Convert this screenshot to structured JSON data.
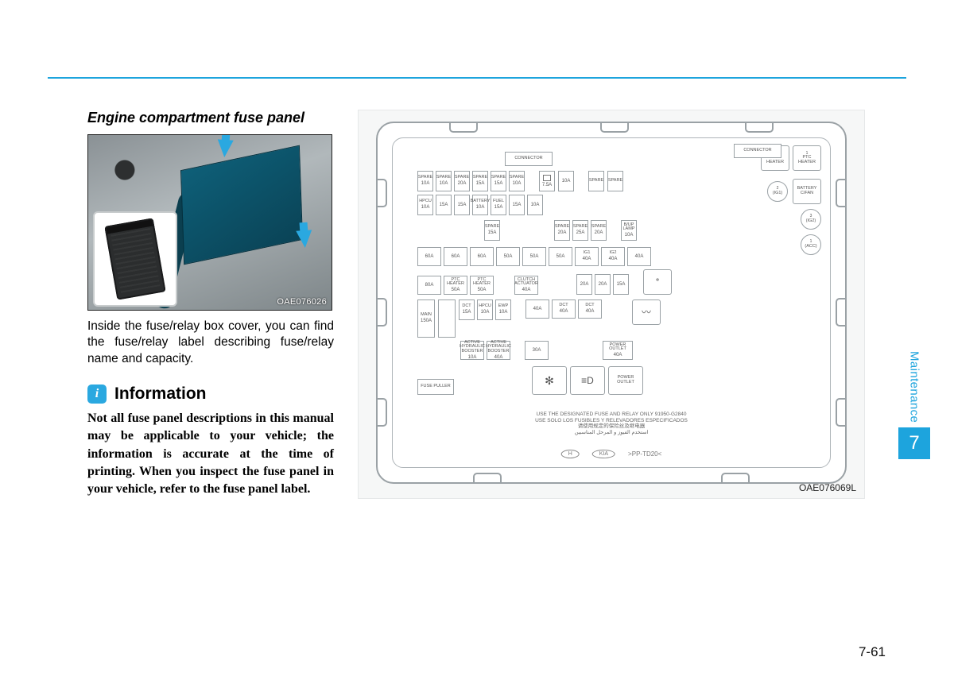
{
  "colors": {
    "rule": "#1da4dd",
    "accent": "#1da4dd",
    "side_text": "#1da4dd",
    "side_box": "#1da4dd",
    "text": "#111111",
    "muted": "#555555",
    "diagram_bg": "#f6f7f7",
    "line": "#9aa1a5"
  },
  "section": {
    "title": "Engine compartment fuse panel"
  },
  "photo": {
    "code": "OAE076026"
  },
  "body": {
    "p1": "Inside the fuse/relay box cover, you can find the fuse/relay label describing fuse/relay name and capacity."
  },
  "info": {
    "badge": "i",
    "title": "Information",
    "body": "Not all fuse panel descriptions in this manual may be applicable to your vehicle; the information is accurate at the time of printing. When you inspect the fuse panel in your vehicle, refer to the fuse panel label."
  },
  "diagram": {
    "code": "OAE076069L",
    "corner_relays": [
      {
        "label": "PTC HEATER",
        "sup": "3"
      },
      {
        "label": "PTC HEATER",
        "sup": "1"
      }
    ],
    "right_round_relays": [
      {
        "label": "(IG1)",
        "sup": "2"
      },
      {
        "label": "(IG2)",
        "sup": "3"
      },
      {
        "label": "(ACC)",
        "sup": "1"
      }
    ],
    "battery_cfan": "BATTERY C/FAN",
    "row_a_top": [
      {
        "name": "SPARE"
      },
      {
        "name": "SPARE"
      },
      {
        "name": "SPARE"
      },
      {
        "name": "SPARE"
      },
      {
        "name": "SPARE"
      },
      {
        "name": "SPARE"
      }
    ],
    "row_a_amp": [
      "10A",
      "10A",
      "20A",
      "15A",
      "15A",
      "10A"
    ],
    "row_a_right": {
      "icon": "washer",
      "amp1": "7.5A",
      "amp2": "10A"
    },
    "row_a_spares": [
      "SPARE",
      "SPARE"
    ],
    "connector": "CONNECTOR",
    "row_b_top": [
      {
        "name": "HPCU"
      },
      {
        "name": ""
      },
      {
        "name": ""
      },
      {
        "name": "BATTERY"
      },
      {
        "name": "FUEL"
      },
      {
        "name": ""
      }
    ],
    "row_b_amp": [
      "10A",
      "15A",
      "15A",
      "10A",
      "15A",
      "15A",
      "10A"
    ],
    "row_c": {
      "left": {
        "name": "SPARE",
        "amp": "15A"
      },
      "mid": [
        {
          "name": "SPARE",
          "amp": "20A"
        },
        {
          "name": "SPARE",
          "amp": "25A"
        },
        {
          "name": "SPARE",
          "amp": "20A"
        }
      ],
      "right": {
        "name": "B/UP LAMP",
        "amp": "10A"
      }
    },
    "row_d_labels": [
      "1",
      "2",
      "3",
      "1",
      "2",
      "1"
    ],
    "row_d_heads": [
      "",
      "",
      "",
      "",
      "",
      "",
      "IG1",
      "IG2"
    ],
    "row_d_amp": [
      "60A",
      "60A",
      "60A",
      "50A",
      "50A",
      "50A",
      "40A",
      "40A",
      "40A"
    ],
    "row_e_left": [
      {
        "name": "",
        "amp": "80A"
      },
      {
        "name": "PTC HEATER",
        "amp": "50A",
        "sup": "1"
      },
      {
        "name": "PTC HEATER",
        "amp": "50A",
        "sup": "2"
      }
    ],
    "row_e_mid": {
      "name": "CLUTCH ACTUATOR",
      "amp": "40A"
    },
    "row_e_right": [
      {
        "name": "",
        "amp": "20A"
      },
      {
        "name": "",
        "amp": "20A"
      },
      {
        "name": "",
        "amp": "15A"
      }
    ],
    "row_e_relay": {
      "icon": "snow"
    },
    "row_f_left_tall": [
      {
        "name": "MAIN",
        "amp": "150A"
      },
      {
        "name": "",
        "amp": ""
      }
    ],
    "row_f_mid_top": [
      {
        "name": "DCT",
        "amp": "15A"
      },
      {
        "name": "HPCU",
        "amp": "10A",
        "sup": "2"
      },
      {
        "name": "EWP",
        "amp": "10A"
      }
    ],
    "row_f_mid_main": [
      {
        "name": "",
        "amp": "40A",
        "sup": "1"
      },
      {
        "name": "DCT",
        "amp": "40A",
        "sup": "2"
      },
      {
        "name": "DCT",
        "amp": "40A",
        "sup": "1"
      }
    ],
    "row_f_relay": {
      "icon": "defrost"
    },
    "row_g_left": [
      {
        "name": "ACTIVE HYDRAULIC BOOSTER",
        "amp": "10A",
        "sup": "1"
      },
      {
        "name": "ACTIVE HYDRAULIC BOOSTER",
        "amp": "40A",
        "sup": "2"
      }
    ],
    "row_g_mid": {
      "name": "",
      "amp": "30A"
    },
    "row_g_right": {
      "name": "POWER OUTLET",
      "amp": "40A"
    },
    "row_h": {
      "puller": "FUSE PULLER",
      "relays": [
        {
          "icon": "fan"
        },
        {
          "icon": "headlamp"
        },
        {
          "name": "POWER OUTLET"
        }
      ]
    },
    "footer_lines": [
      "USE THE DESIGNATED FUSE AND RELAY ONLY 91950-G2840",
      "USE SOLO LOS FUSIBLES Y RELEVADORES ESPECIFICADOS",
      "请使用规定的保险丝及继电器",
      "استخدم الفيوز و المرحل المناسبين"
    ],
    "pp": ">PP-TD20<"
  },
  "side": {
    "label": "Maintenance",
    "chapter": "7"
  },
  "page_number": "7-61"
}
